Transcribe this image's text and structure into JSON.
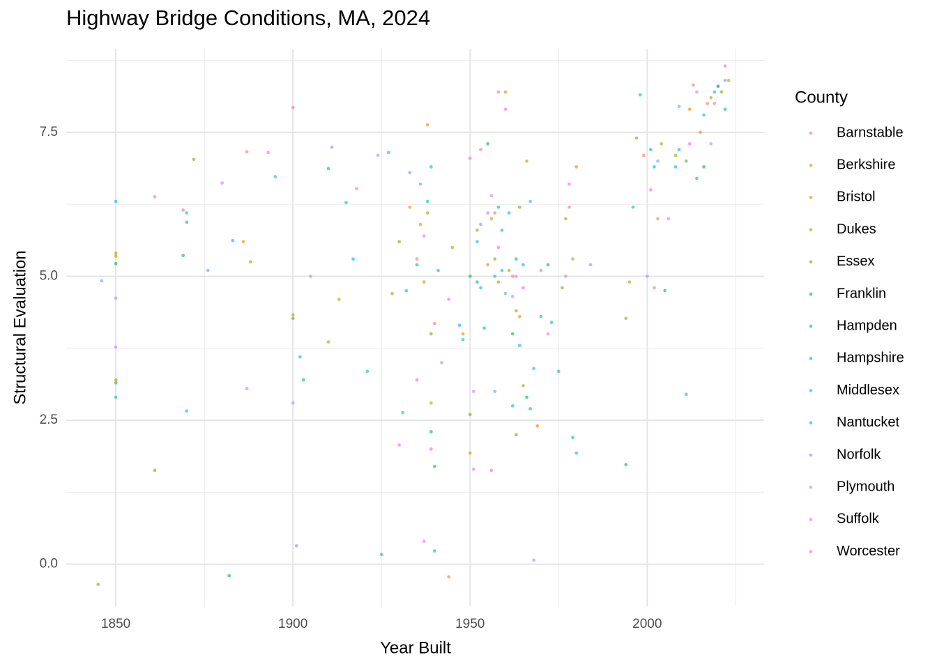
{
  "chart_data": {
    "type": "scatter",
    "title": "Highway Bridge Conditions, MA, 2024",
    "x_label": "Year Built",
    "y_label": "Structural Evaluation",
    "legend_title": "County",
    "xlim": [
      1836,
      2033
    ],
    "ylim": [
      -0.73,
      8.95
    ],
    "xticks": [
      1850,
      1900,
      1950,
      2000
    ],
    "yticks": [
      {
        "value": 0,
        "label": "0.0"
      },
      2.5,
      {
        "value": 5,
        "label": "5.0"
      },
      7.5
    ],
    "grid": true,
    "minor_grid": true,
    "legend_position": "right",
    "series": [
      {
        "name": "Barnstable",
        "color": "#F8766D",
        "x": [
          1861,
          1887,
          1940,
          1953,
          1957,
          1962,
          1958,
          1978,
          1999,
          2003,
          2013,
          2017,
          1970,
          1935
        ],
        "values": [
          6.38,
          7.16,
          4.18,
          7.2,
          6.1,
          5.0,
          8.2,
          6.2,
          7.1,
          6.0,
          8.32,
          8.0,
          5.1,
          5.3
        ]
      },
      {
        "name": "Berkshire",
        "color": "#E58700",
        "x": [
          1850,
          1886,
          1936,
          1944,
          1955,
          1960,
          1964,
          1980,
          2004,
          2012,
          2020,
          1948,
          1938,
          1969
        ],
        "values": [
          5.35,
          5.6,
          5.9,
          -0.22,
          5.2,
          8.2,
          4.3,
          6.9,
          7.3,
          7.9,
          8.3,
          4.0,
          7.63,
          2.4
        ]
      },
      {
        "name": "Bristol",
        "color": "#C99800",
        "x": [
          1850,
          1913,
          1937,
          1950,
          1956,
          1961,
          1966,
          1979,
          1995,
          2015,
          2023,
          1933,
          1900,
          1939
        ],
        "values": [
          3.2,
          4.6,
          4.9,
          1.93,
          6.0,
          5.1,
          7.0,
          5.3,
          4.9,
          7.5,
          8.4,
          6.2,
          4.33,
          2.8
        ]
      },
      {
        "name": "Dukes",
        "color": "#A3A500",
        "x": [
          1850,
          1888,
          1910,
          1938,
          1952,
          1958,
          1963,
          1977,
          1994,
          2008,
          2018,
          1928,
          1945,
          1965
        ],
        "values": [
          5.4,
          5.25,
          3.86,
          6.1,
          5.8,
          4.9,
          4.4,
          6.0,
          4.27,
          7.1,
          8.1,
          4.7,
          5.5,
          3.1
        ]
      },
      {
        "name": "Essex",
        "color": "#6BB100",
        "x": [
          1845,
          1861,
          1872,
          1900,
          1939,
          1950,
          1957,
          1964,
          1976,
          1997,
          2011,
          2021,
          1930,
          1963
        ],
        "values": [
          -0.35,
          1.63,
          7.03,
          4.27,
          4.0,
          2.6,
          5.3,
          6.2,
          4.8,
          7.4,
          7.0,
          8.2,
          5.6,
          2.25
        ]
      },
      {
        "name": "Franklin",
        "color": "#00BA38",
        "x": [
          1850,
          1869,
          1882,
          1903,
          1940,
          1950,
          1955,
          1962,
          1972,
          1994,
          2005,
          2016,
          1939,
          1966
        ],
        "values": [
          5.22,
          5.36,
          -0.2,
          3.2,
          1.7,
          5.0,
          7.3,
          4.0,
          5.2,
          1.73,
          4.75,
          6.9,
          2.3,
          2.9
        ]
      },
      {
        "name": "Hampden",
        "color": "#00BF7D",
        "x": [
          1850,
          1870,
          1910,
          1925,
          1940,
          1952,
          1958,
          1963,
          1979,
          2001,
          2014,
          2022,
          1935,
          1967
        ],
        "values": [
          3.15,
          5.94,
          6.87,
          0.17,
          0.23,
          4.9,
          6.2,
          5.3,
          2.2,
          7.2,
          6.7,
          7.9,
          5.2,
          2.7
        ]
      },
      {
        "name": "Hampshire",
        "color": "#00C0AF",
        "x": [
          1870,
          1902,
          1915,
          1927,
          1939,
          1954,
          1959,
          1964,
          1975,
          1996,
          2008,
          2019,
          1948,
          1970
        ],
        "values": [
          6.1,
          3.6,
          6.28,
          7.15,
          6.9,
          4.1,
          5.1,
          3.8,
          3.35,
          6.2,
          6.9,
          8.2,
          3.9,
          4.3
        ]
      },
      {
        "name": "Middlesex",
        "color": "#00BCD8",
        "x": [
          1850,
          1870,
          1895,
          1921,
          1938,
          1952,
          1957,
          1961,
          1968,
          1998,
          2011,
          2016,
          1980,
          1931
        ],
        "values": [
          2.9,
          2.66,
          6.73,
          3.35,
          6.3,
          5.6,
          5.0,
          6.1,
          3.4,
          8.15,
          2.95,
          7.8,
          1.93,
          2.63
        ]
      },
      {
        "name": "Nantucket",
        "color": "#00B0F6",
        "x": [
          1850,
          1883,
          1917,
          1932,
          1941,
          1953,
          1959,
          1965,
          1973,
          2002,
          2009,
          2020,
          1947,
          1962
        ],
        "values": [
          6.3,
          5.62,
          5.3,
          4.75,
          5.1,
          4.8,
          5.8,
          5.2,
          4.2,
          6.9,
          7.2,
          8.3,
          4.15,
          2.75
        ]
      },
      {
        "name": "Norfolk",
        "color": "#619CFF",
        "x": [
          1846,
          1876,
          1901,
          1911,
          1936,
          1953,
          1960,
          1967,
          1984,
          2003,
          2009,
          2022,
          1933,
          1957
        ],
        "values": [
          4.92,
          5.1,
          0.32,
          7.24,
          6.6,
          5.9,
          4.7,
          6.3,
          5.2,
          7.0,
          7.95,
          8.4,
          6.8,
          3.0
        ]
      },
      {
        "name": "Plymouth",
        "color": "#B983FF",
        "x": [
          1850,
          1880,
          1900,
          1924,
          1937,
          1951,
          1956,
          1962,
          1968,
          2000,
          2014,
          2018,
          1942,
          1977
        ],
        "values": [
          4.62,
          6.62,
          2.8,
          7.1,
          5.7,
          3.0,
          6.4,
          4.65,
          0.07,
          5.0,
          8.2,
          7.3,
          3.5,
          5.0
        ]
      },
      {
        "name": "Suffolk",
        "color": "#E76BF3",
        "x": [
          1850,
          1887,
          1905,
          1930,
          1937,
          1951,
          1955,
          1963,
          1972,
          2001,
          2006,
          2022,
          1944,
          1960
        ],
        "values": [
          3.77,
          3.05,
          5.0,
          2.07,
          0.4,
          1.65,
          6.1,
          5.0,
          4.0,
          6.5,
          6.0,
          8.65,
          4.6,
          7.9
        ]
      },
      {
        "name": "Worcester",
        "color": "#FD61D1",
        "x": [
          1869,
          1893,
          1900,
          1918,
          1939,
          1950,
          1958,
          1965,
          1978,
          2002,
          2012,
          2019,
          1935,
          1956
        ],
        "values": [
          6.15,
          7.15,
          7.93,
          6.52,
          2.0,
          7.05,
          5.5,
          4.8,
          6.6,
          4.8,
          7.3,
          8.0,
          3.2,
          1.63
        ]
      }
    ]
  }
}
